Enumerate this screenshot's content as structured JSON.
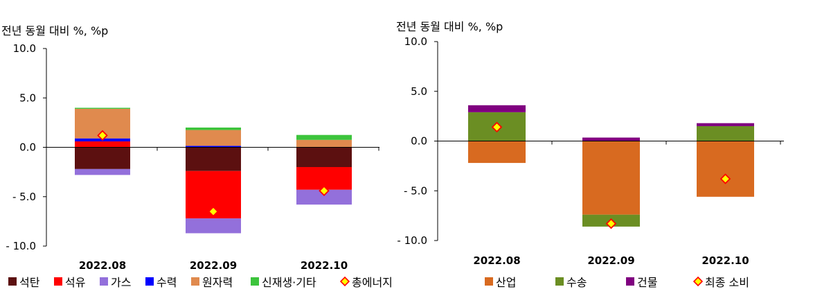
{
  "chart_data": [
    {
      "type": "bar",
      "stacked": true,
      "ylabel": "전년 동월 대비 %, %p",
      "ylim": [
        -10,
        10
      ],
      "yticks": [
        10,
        5,
        0,
        -5,
        -10
      ],
      "ytick_labels": [
        "10.0",
        "5.0",
        "0.0",
        "- 5.0",
        "- 10.0"
      ],
      "categories": [
        "2022.08",
        "2022.09",
        "2022.10"
      ],
      "legend_position": "bottom",
      "series": [
        {
          "name": "석탄",
          "color": "#5c1010",
          "values": [
            -2.2,
            -2.4,
            -2.0
          ]
        },
        {
          "name": "석유",
          "color": "#ff0000",
          "values": [
            0.6,
            -4.8,
            -2.3
          ]
        },
        {
          "name": "가스",
          "color": "#9370db",
          "values": [
            -0.6,
            -1.5,
            -1.5
          ]
        },
        {
          "name": "수력",
          "color": "#0000ff",
          "values": [
            0.3,
            0.15,
            0.0
          ]
        },
        {
          "name": "원자력",
          "color": "#e08a4e",
          "values": [
            3.0,
            1.6,
            0.75
          ]
        },
        {
          "name": "신재생·기타",
          "color": "#3cc43c",
          "values": [
            0.1,
            0.25,
            0.5
          ]
        }
      ],
      "total": {
        "name": "총에너지",
        "values": [
          1.2,
          -6.5,
          -4.4
        ]
      }
    },
    {
      "type": "bar",
      "stacked": true,
      "ylabel": "전년 동월 대비 %, %p",
      "ylim": [
        -10,
        10
      ],
      "yticks": [
        10,
        5,
        0,
        -5,
        -10
      ],
      "ytick_labels": [
        "10.0",
        "5.0",
        "0.0",
        "- 5.0",
        "- 10.0"
      ],
      "categories": [
        "2022.08",
        "2022.09",
        "2022.10"
      ],
      "legend_position": "bottom",
      "series": [
        {
          "name": "산업",
          "color": "#d86a20",
          "values": [
            -2.2,
            -7.4,
            -5.6
          ]
        },
        {
          "name": "수송",
          "color": "#6b8e23",
          "values": [
            2.9,
            -1.2,
            1.5
          ]
        },
        {
          "name": "건물",
          "color": "#800080",
          "values": [
            0.7,
            0.35,
            0.3
          ]
        }
      ],
      "total": {
        "name": "최종 소비",
        "values": [
          1.4,
          -8.3,
          -3.8
        ]
      }
    }
  ]
}
